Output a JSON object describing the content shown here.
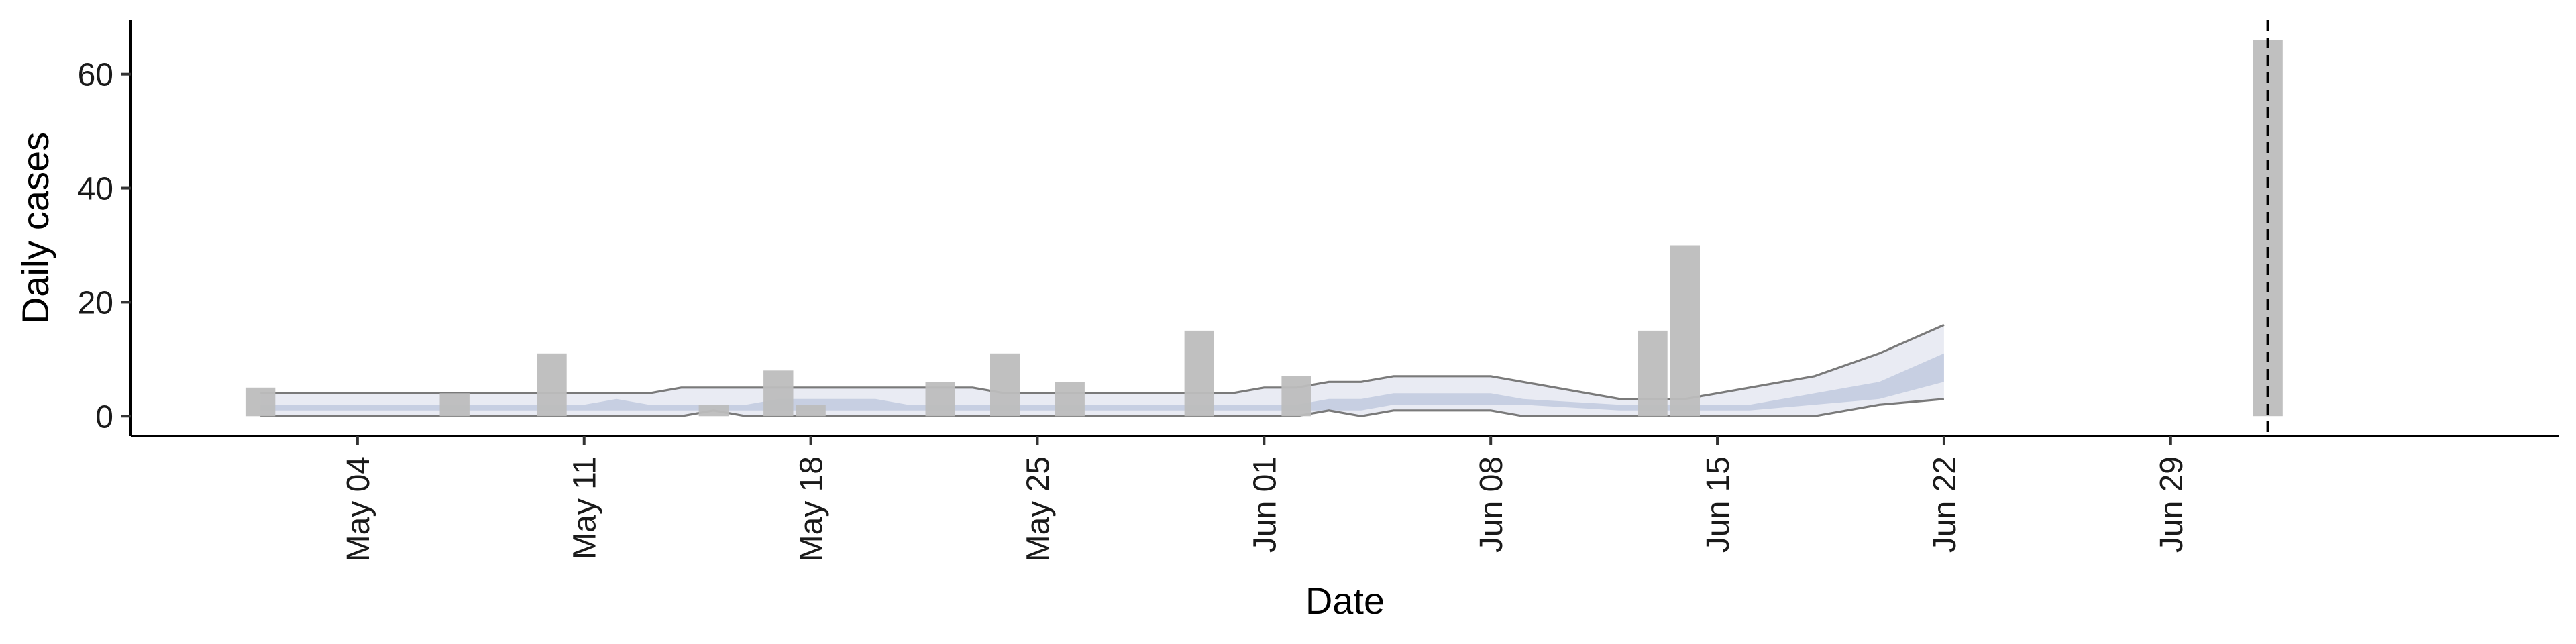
{
  "chart_data": {
    "type": "bar",
    "title": "",
    "xlabel": "Date",
    "ylabel": "Daily cases",
    "xlim": [
      "2020-04-27",
      "2020-07-11"
    ],
    "ylim": [
      -3.5,
      69.5
    ],
    "y_ticks": [
      0,
      20,
      40,
      60
    ],
    "x_ticks": [
      {
        "date": "2020-05-04",
        "label": "May 04"
      },
      {
        "date": "2020-05-11",
        "label": "May 11"
      },
      {
        "date": "2020-05-18",
        "label": "May 18"
      },
      {
        "date": "2020-05-25",
        "label": "May 25"
      },
      {
        "date": "2020-06-01",
        "label": "Jun 01"
      },
      {
        "date": "2020-06-08",
        "label": "Jun 08"
      },
      {
        "date": "2020-06-15",
        "label": "Jun 15"
      },
      {
        "date": "2020-06-22",
        "label": "Jun 22"
      },
      {
        "date": "2020-06-29",
        "label": "Jun 29"
      }
    ],
    "grid": false,
    "legend": "none",
    "vertical_reference_line": "2020-07-02",
    "colors": {
      "bars": "#bdbdbd",
      "interval_outer": "#e9ebf3",
      "interval_inner": "#c7cfe2",
      "interval_border": "#7a7a7a",
      "reference_line": "#000000"
    },
    "bars": [
      {
        "date": "2020-05-01",
        "value": 5
      },
      {
        "date": "2020-05-07",
        "value": 4
      },
      {
        "date": "2020-05-10",
        "value": 11
      },
      {
        "date": "2020-05-15",
        "value": 2
      },
      {
        "date": "2020-05-17",
        "value": 8
      },
      {
        "date": "2020-05-18",
        "value": 2
      },
      {
        "date": "2020-05-22",
        "value": 6
      },
      {
        "date": "2020-05-24",
        "value": 11
      },
      {
        "date": "2020-05-26",
        "value": 6
      },
      {
        "date": "2020-05-30",
        "value": 15
      },
      {
        "date": "2020-06-02",
        "value": 7
      },
      {
        "date": "2020-06-13",
        "value": 15
      },
      {
        "date": "2020-06-14",
        "value": 30
      },
      {
        "date": "2020-07-02",
        "value": 66
      }
    ],
    "intervals": [
      {
        "date": "2020-05-01",
        "lo90": 0,
        "lo50": 1,
        "hi50": 2,
        "hi90": 4
      },
      {
        "date": "2020-05-05",
        "lo90": 0,
        "lo50": 1,
        "hi50": 2,
        "hi90": 4
      },
      {
        "date": "2020-05-09",
        "lo90": 0,
        "lo50": 1,
        "hi50": 2,
        "hi90": 4
      },
      {
        "date": "2020-05-11",
        "lo90": 0,
        "lo50": 1,
        "hi50": 2,
        "hi90": 4
      },
      {
        "date": "2020-05-12",
        "lo90": 0,
        "lo50": 1,
        "hi50": 3,
        "hi90": 4
      },
      {
        "date": "2020-05-13",
        "lo90": 0,
        "lo50": 1,
        "hi50": 2,
        "hi90": 4
      },
      {
        "date": "2020-05-14",
        "lo90": 0,
        "lo50": 1,
        "hi50": 2,
        "hi90": 5
      },
      {
        "date": "2020-05-15",
        "lo90": 1,
        "lo50": 1,
        "hi50": 2,
        "hi90": 5
      },
      {
        "date": "2020-05-16",
        "lo90": 0,
        "lo50": 1,
        "hi50": 2,
        "hi90": 5
      },
      {
        "date": "2020-05-17",
        "lo90": 0,
        "lo50": 1,
        "hi50": 3,
        "hi90": 5
      },
      {
        "date": "2020-05-20",
        "lo90": 0,
        "lo50": 1,
        "hi50": 3,
        "hi90": 5
      },
      {
        "date": "2020-05-21",
        "lo90": 0,
        "lo50": 1,
        "hi50": 2,
        "hi90": 5
      },
      {
        "date": "2020-05-23",
        "lo90": 0,
        "lo50": 1,
        "hi50": 2,
        "hi90": 5
      },
      {
        "date": "2020-05-24",
        "lo90": 0,
        "lo50": 1,
        "hi50": 2,
        "hi90": 4
      },
      {
        "date": "2020-05-27",
        "lo90": 0,
        "lo50": 1,
        "hi50": 2,
        "hi90": 4
      },
      {
        "date": "2020-05-29",
        "lo90": 0,
        "lo50": 1,
        "hi50": 2,
        "hi90": 4
      },
      {
        "date": "2020-05-31",
        "lo90": 0,
        "lo50": 1,
        "hi50": 2,
        "hi90": 4
      },
      {
        "date": "2020-06-01",
        "lo90": 0,
        "lo50": 1,
        "hi50": 2,
        "hi90": 5
      },
      {
        "date": "2020-06-02",
        "lo90": 0,
        "lo50": 1,
        "hi50": 2,
        "hi90": 5
      },
      {
        "date": "2020-06-03",
        "lo90": 1,
        "lo50": 1,
        "hi50": 3,
        "hi90": 6
      },
      {
        "date": "2020-06-04",
        "lo90": 0,
        "lo50": 1,
        "hi50": 3,
        "hi90": 6
      },
      {
        "date": "2020-06-05",
        "lo90": 1,
        "lo50": 2,
        "hi50": 4,
        "hi90": 7
      },
      {
        "date": "2020-06-08",
        "lo90": 1,
        "lo50": 2,
        "hi50": 4,
        "hi90": 7
      },
      {
        "date": "2020-06-09",
        "lo90": 0,
        "lo50": 2,
        "hi50": 3,
        "hi90": 6
      },
      {
        "date": "2020-06-12",
        "lo90": 0,
        "lo50": 1,
        "hi50": 2,
        "hi90": 3
      },
      {
        "date": "2020-06-14",
        "lo90": 0,
        "lo50": 1,
        "hi50": 2,
        "hi90": 3
      },
      {
        "date": "2020-06-16",
        "lo90": 0,
        "lo50": 1,
        "hi50": 2,
        "hi90": 5
      },
      {
        "date": "2020-06-18",
        "lo90": 0,
        "lo50": 2,
        "hi50": 4,
        "hi90": 7
      },
      {
        "date": "2020-06-20",
        "lo90": 2,
        "lo50": 3,
        "hi50": 6,
        "hi90": 11
      },
      {
        "date": "2020-06-22",
        "lo90": 3,
        "lo50": 6,
        "hi50": 11,
        "hi90": 16
      }
    ]
  }
}
